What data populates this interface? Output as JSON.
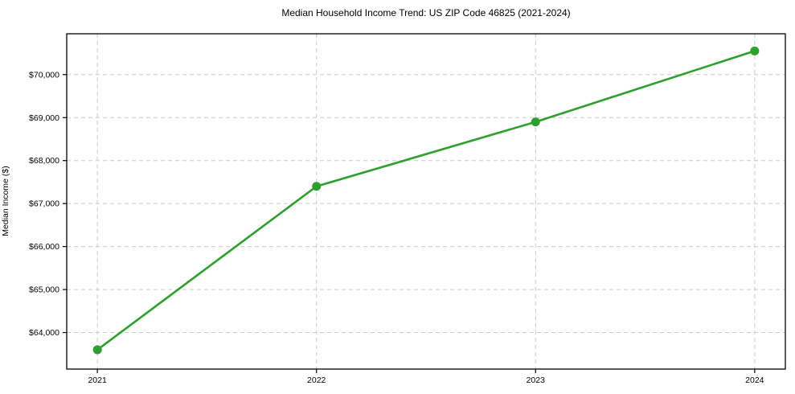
{
  "title": "Median Household Income Trend: US ZIP Code 46825 (2021-2024)",
  "chart_data": {
    "type": "line",
    "title": "Median Household Income Trend: US ZIP Code 46825 (2021-2024)",
    "xlabel": "",
    "ylabel": "Median Income ($)",
    "x": [
      2021,
      2022,
      2023,
      2024
    ],
    "x_tick_labels": [
      "2021",
      "2022",
      "2023",
      "2024"
    ],
    "series": [
      {
        "name": "Median Household Income",
        "values": [
          63600,
          67400,
          68900,
          70550
        ],
        "color": "#2ca02c",
        "marker": "circle"
      }
    ],
    "y_ticks": [
      64000,
      65000,
      66000,
      67000,
      68000,
      69000,
      70000
    ],
    "y_tick_labels": [
      "$64,000",
      "$65,000",
      "$66,000",
      "$67,000",
      "$68,000",
      "$69,000",
      "$70,000"
    ],
    "xlim": [
      2020.86,
      2024.14
    ],
    "ylim": [
      63150,
      70950
    ],
    "grid": "both",
    "grid_style": "dashed",
    "grid_color": "#c9c9c9",
    "axis_color": "#000000",
    "background": "#ffffff",
    "legend": "none",
    "line_width": 2.6,
    "marker_radius": 5.5
  }
}
